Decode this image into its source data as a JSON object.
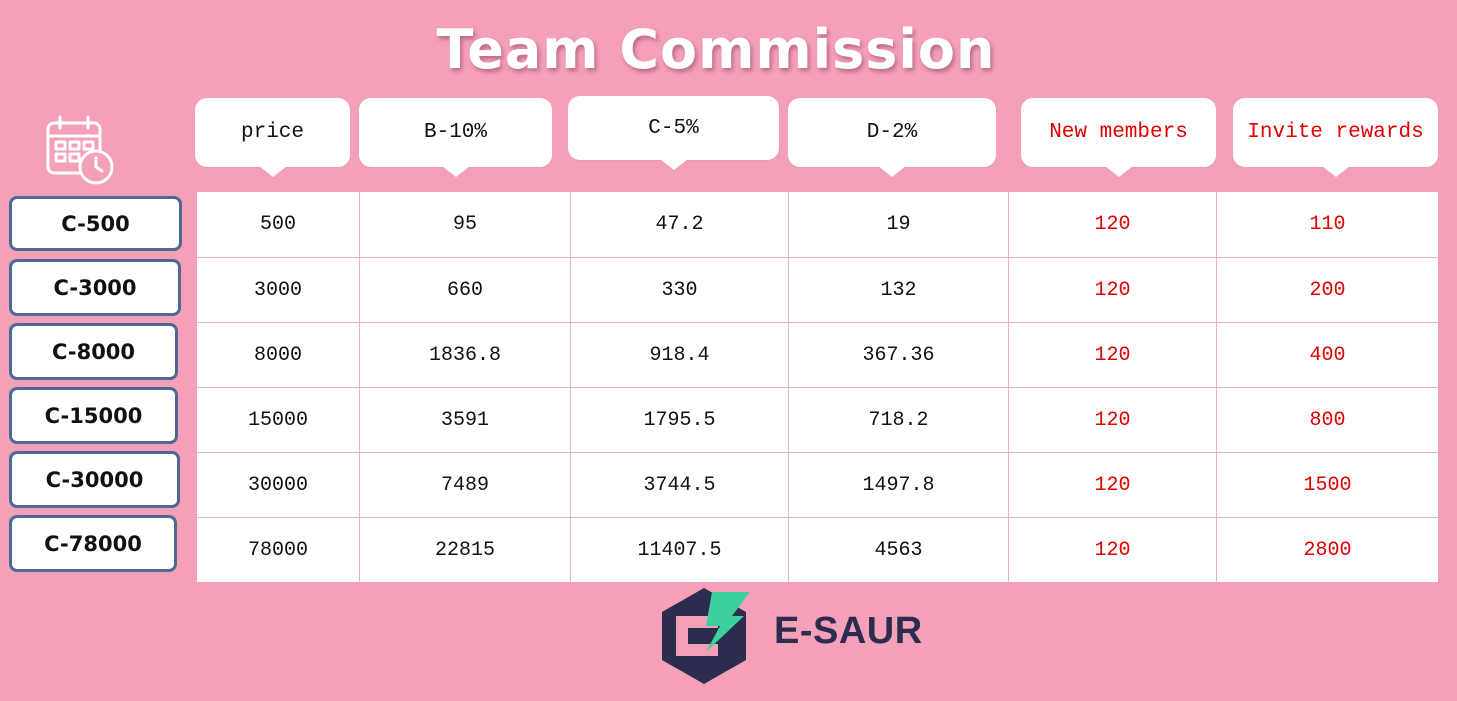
{
  "title": "Team Commission",
  "headers": [
    {
      "label": "price",
      "color": "#111111"
    },
    {
      "label": "B-10%",
      "color": "#111111"
    },
    {
      "label": "C-5%",
      "color": "#111111"
    },
    {
      "label": "D-2%",
      "color": "#111111"
    },
    {
      "label": "New members",
      "color": "#e00000"
    },
    {
      "label": "Invite rewards",
      "color": "#e00000"
    }
  ],
  "plans": [
    "C-500",
    "C-3000",
    "C-8000",
    "C-15000",
    "C-30000",
    "C-78000"
  ],
  "rows": [
    [
      "500",
      "95",
      "47.2",
      "19",
      "120",
      "110"
    ],
    [
      "3000",
      "660",
      "330",
      "132",
      "120",
      "200"
    ],
    [
      "8000",
      "1836.8",
      "918.4",
      "367.36",
      "120",
      "400"
    ],
    [
      "15000",
      "3591",
      "1795.5",
      "718.2",
      "120",
      "800"
    ],
    [
      "30000",
      "7489",
      "3744.5",
      "1497.8",
      "120",
      "1500"
    ],
    [
      "78000",
      "22815",
      "11407.5",
      "4563",
      "120",
      "2800"
    ]
  ],
  "brand": {
    "name": "E-SAUR",
    "icon": "e-saur-logo-icon"
  },
  "icons": {
    "calendar": "calendar-clock-icon"
  },
  "colors": {
    "background": "#f4a0b9",
    "accent_red": "#e00000",
    "button_border": "#4b6a8f",
    "brand_dark": "#2c2c4f",
    "brand_green": "#3ecf9f"
  }
}
